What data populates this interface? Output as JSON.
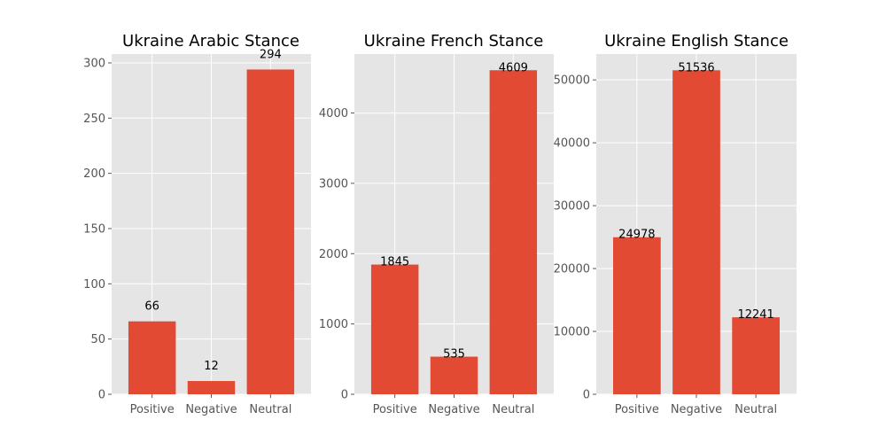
{
  "chart_data": [
    {
      "type": "bar",
      "title": "Ukraine Arabic Stance",
      "categories": [
        "Positive",
        "Negative",
        "Neutral"
      ],
      "values": [
        66,
        12,
        294
      ],
      "value_labels": [
        "66",
        "12",
        "294"
      ],
      "ylim": [
        0,
        308
      ],
      "yticks": [
        0,
        50,
        100,
        150,
        200,
        250,
        300
      ],
      "ytick_labels": [
        "0",
        "50",
        "100",
        "150",
        "200",
        "250",
        "300"
      ],
      "grid": true,
      "label_style": "above",
      "bar_color": "#e24a33"
    },
    {
      "type": "bar",
      "title": "Ukraine French Stance",
      "categories": [
        "Positive",
        "Negative",
        "Neutral"
      ],
      "values": [
        1845,
        535,
        4609
      ],
      "value_labels": [
        "1845",
        "535",
        "4609"
      ],
      "ylim": [
        0,
        4839
      ],
      "yticks": [
        0,
        1000,
        2000,
        3000,
        4000
      ],
      "ytick_labels": [
        "0",
        "1000",
        "2000",
        "3000",
        "4000"
      ],
      "grid": true,
      "label_style": "at-top",
      "bar_color": "#e24a33"
    },
    {
      "type": "bar",
      "title": "Ukraine English Stance",
      "categories": [
        "Positive",
        "Negative",
        "Neutral"
      ],
      "values": [
        24978,
        51536,
        12241
      ],
      "value_labels": [
        "24978",
        "51536",
        "12241"
      ],
      "ylim": [
        0,
        54113
      ],
      "yticks": [
        0,
        10000,
        20000,
        30000,
        40000,
        50000
      ],
      "ytick_labels": [
        "0",
        "10000",
        "20000",
        "30000",
        "40000",
        "50000"
      ],
      "grid": true,
      "label_style": "at-top",
      "bar_color": "#e24a33"
    }
  ],
  "colors": {
    "plot_background": "#e5e5e5",
    "grid": "#ffffff",
    "bar": "#e24a33",
    "tick_text": "#555555"
  }
}
